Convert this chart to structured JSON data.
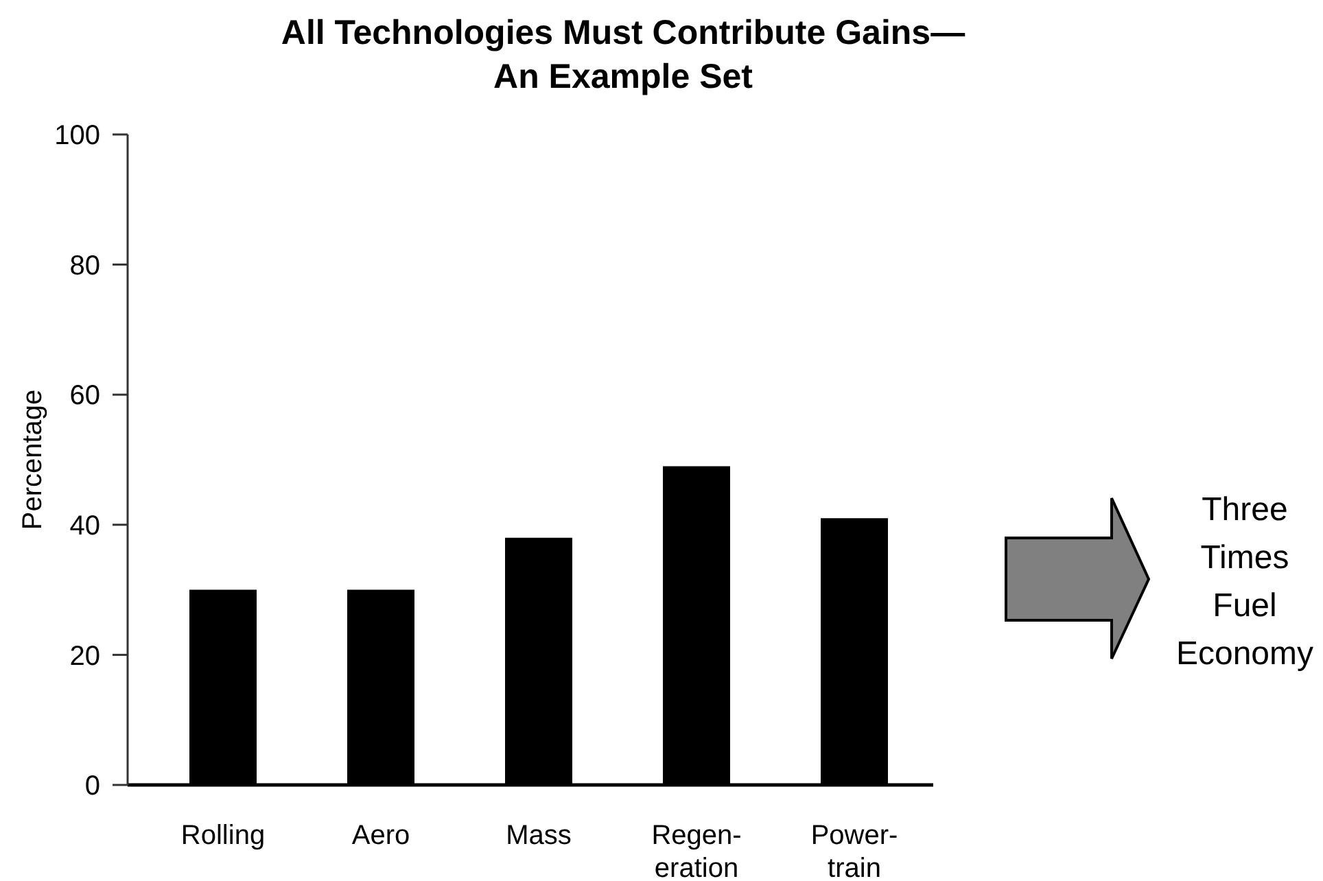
{
  "chart_data": {
    "type": "bar",
    "title": "All Technologies Must Contribute Gains—\nAn Example Set",
    "ylabel": "Percentage",
    "categories": [
      "Rolling",
      "Aero",
      "Mass",
      "Regen-\neration",
      "Power-\ntrain"
    ],
    "values": [
      30,
      30,
      38,
      49,
      41
    ],
    "color": "#000000",
    "ylim": [
      0,
      100
    ],
    "yticks": [
      0,
      20,
      40,
      60,
      80,
      100
    ],
    "annotations": [
      "Three Times Fuel Economy"
    ]
  }
}
